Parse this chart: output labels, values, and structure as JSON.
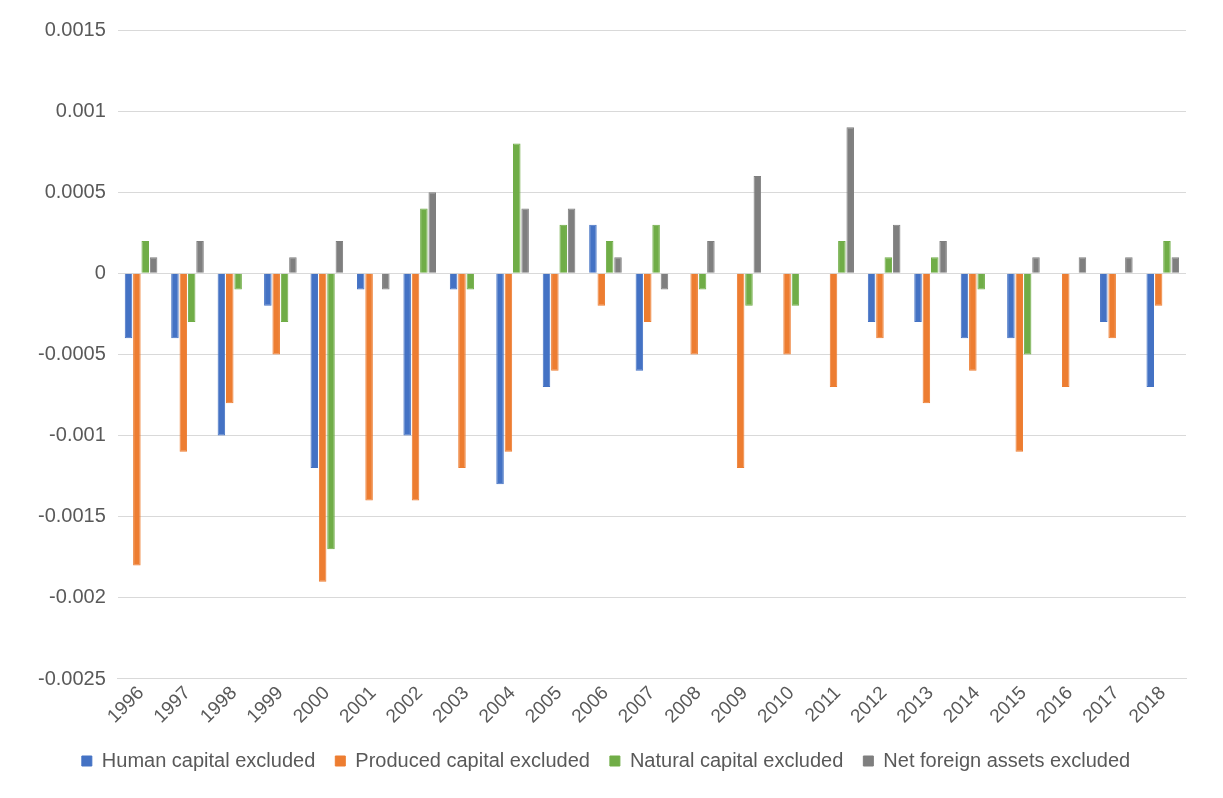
{
  "chart_data": {
    "type": "bar",
    "categories": [
      "1996",
      "1997",
      "1998",
      "1999",
      "2000",
      "2001",
      "2002",
      "2003",
      "2004",
      "2005",
      "2006",
      "2007",
      "2008",
      "2009",
      "2010",
      "2011",
      "2012",
      "2013",
      "2014",
      "2015",
      "2016",
      "2017",
      "2018"
    ],
    "series": [
      {
        "name": "Human capital excluded",
        "color": "#4472c4",
        "values": [
          -0.0004,
          -0.0004,
          -0.001,
          -0.0002,
          -0.0012,
          -0.0001,
          -0.001,
          -0.0001,
          -0.0013,
          -0.0007,
          0.0003,
          -0.0006,
          0,
          0,
          0,
          0,
          -0.0003,
          -0.0003,
          -0.0004,
          -0.0004,
          0,
          -0.0003,
          -0.0007
        ]
      },
      {
        "name": "Produced capital excluded",
        "color": "#ed7d31",
        "values": [
          -0.0018,
          -0.0011,
          -0.0008,
          -0.0005,
          -0.0019,
          -0.0014,
          -0.0014,
          -0.0012,
          -0.0011,
          -0.0006,
          -0.0002,
          -0.0003,
          -0.0005,
          -0.0012,
          -0.0005,
          -0.0007,
          -0.0004,
          -0.0008,
          -0.0006,
          -0.0011,
          -0.0007,
          -0.0004,
          -0.0002
        ]
      },
      {
        "name": "Natural capital excluded",
        "color": "#70ad47",
        "values": [
          0.0002,
          -0.0003,
          -0.0001,
          -0.0003,
          -0.0017,
          0,
          0.0004,
          -0.0001,
          0.0008,
          0.0003,
          0.0002,
          0.0003,
          -0.0001,
          -0.0002,
          -0.0002,
          0.0002,
          0.0001,
          0.0001,
          -0.0001,
          -0.0005,
          0,
          0,
          0.0002
        ]
      },
      {
        "name": "Net foreign assets excluded",
        "color": "#7f7f7f",
        "values": [
          0.0001,
          0.0002,
          0,
          0.0001,
          0.0002,
          -0.0001,
          0.0005,
          0,
          0.0004,
          0.0004,
          0.0001,
          -0.0001,
          0.0002,
          0.0006,
          0,
          0.0009,
          0.0003,
          0.0002,
          0,
          0.0001,
          0.0001,
          0.0001,
          0.0001
        ]
      }
    ],
    "ylim": [
      -0.0025,
      0.0015
    ],
    "yticks": [
      -0.0025,
      -0.002,
      -0.0015,
      -0.001,
      -0.0005,
      0,
      0.0005,
      0.001,
      0.0015
    ],
    "grid": "y",
    "legend": "bottom"
  }
}
